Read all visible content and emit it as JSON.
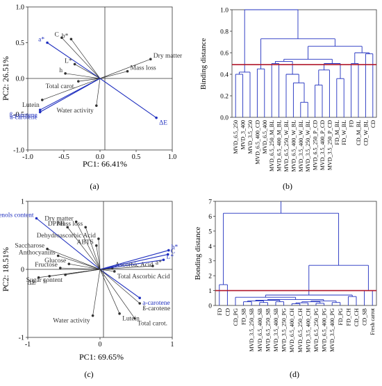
{
  "panels": {
    "a": {
      "caption": "(a)",
      "chart": {
        "type": "biplot",
        "xlabel": "PC1: 66.41%",
        "ylabel": "PC2: 26.51%",
        "xlim": [
          -1.0,
          1.0
        ],
        "ylim": [
          -1.0,
          1.0
        ],
        "xticks": [
          "-1.0",
          "-0.5",
          "0.0",
          "0.5",
          "1.0"
        ],
        "yticks": [
          "1.0",
          "0.5",
          "0.0",
          "-0.5",
          "-1.0"
        ],
        "vectors": [
          {
            "label": "C",
            "x": -0.53,
            "y": 0.57,
            "color": "#333333"
          },
          {
            "label": "b*",
            "x": -0.4,
            "y": 0.55,
            "color": "#333333"
          },
          {
            "label": "a*",
            "x": -0.73,
            "y": 0.5,
            "color": "#1f2fbf"
          },
          {
            "label": "L*",
            "x": -0.35,
            "y": 0.2,
            "color": "#333333"
          },
          {
            "label": "h",
            "x": -0.48,
            "y": 0.07,
            "color": "#333333"
          },
          {
            "label": "Total carot.",
            "x": -0.3,
            "y": -0.04,
            "color": "#333333"
          },
          {
            "label": "Lutein",
            "x": -0.8,
            "y": -0.3,
            "color": "#333333"
          },
          {
            "label": "Water activity",
            "x": -0.05,
            "y": -0.38,
            "color": "#333333"
          },
          {
            "label": "ß-carotene",
            "x": -0.83,
            "y": -0.44,
            "color": "#1f2fbf"
          },
          {
            "label": "a-carotene",
            "x": -0.83,
            "y": -0.47,
            "color": "#1f2fbf"
          },
          {
            "label": "Dry matter",
            "x": 0.7,
            "y": 0.27,
            "color": "#333333"
          },
          {
            "label": "Mass loss",
            "x": 0.38,
            "y": 0.1,
            "color": "#333333"
          },
          {
            "label": "ΔE",
            "x": 0.78,
            "y": -0.55,
            "color": "#1f2fbf"
          }
        ]
      }
    },
    "b": {
      "caption": "(b)",
      "chart": {
        "type": "dendrogram",
        "ylabel": "Binding distance",
        "ylim": [
          0.0,
          1.0
        ],
        "yticks": [
          "1.0",
          "0.8",
          "0.6",
          "0.4",
          "0.2",
          "0.0"
        ],
        "cutoff": 0.49,
        "leaves": [
          "MVD_6.5_250",
          "MVD_3_400",
          "MVD_3.5_250",
          "MVD_6.5_400_CD",
          "MVD_6.5_400",
          "MVD_6.5_250_M_BL",
          "MVD_6.5_400_M_BL",
          "MVD_6.5_250_W_BL",
          "MVD_6.5_400_W_BL",
          "MVD_3.5_400_W_BL",
          "MVD_3.5_250_W_BL",
          "MVD_6.5_250_P_CD",
          "MVD_3.5_400_P_CD",
          "MVD_3.5_250_P_CD",
          "FD_M_BL",
          "FD_W_BL",
          "FD",
          "CD_M_BL",
          "CD_W_BL",
          "CD"
        ]
      }
    },
    "c": {
      "caption": "(c)",
      "chart": {
        "type": "biplot",
        "xlabel": "PC1: 69.65%",
        "ylabel": "PC2: 18.51%",
        "xlim": [
          -1.0,
          1.0
        ],
        "ylim": [
          -1.0,
          1.0
        ],
        "xticks": [
          "-1",
          "0",
          "1"
        ],
        "yticks": [
          "1",
          "0",
          "-1"
        ],
        "vectors": [
          {
            "label": "Polyphenols content",
            "x": -0.88,
            "y": 0.75,
            "color": "#1f2fbf"
          },
          {
            "label": "Dry matter",
            "x": -0.33,
            "y": 0.7,
            "color": "#333333"
          },
          {
            "label": "DPPH",
            "x": -0.45,
            "y": 0.62,
            "color": "#333333"
          },
          {
            "label": "Mass loss",
            "x": -0.2,
            "y": 0.62,
            "color": "#333333"
          },
          {
            "label": "Dehydroascorbic Acid",
            "x": -0.02,
            "y": 0.45,
            "color": "#333333"
          },
          {
            "label": "ABTS",
            "x": -0.05,
            "y": 0.35,
            "color": "#333333"
          },
          {
            "label": "Saccharose",
            "x": -0.73,
            "y": 0.3,
            "color": "#333333"
          },
          {
            "label": "Anthocyanins",
            "x": -0.58,
            "y": 0.2,
            "color": "#333333"
          },
          {
            "label": "Glucose",
            "x": -0.43,
            "y": 0.08,
            "color": "#333333"
          },
          {
            "label": "Fructose",
            "x": -0.55,
            "y": 0.02,
            "color": "#333333"
          },
          {
            "label": "Sugar content",
            "x": -0.48,
            "y": -0.08,
            "color": "#333333"
          },
          {
            "label": "h",
            "x": -0.7,
            "y": -0.1,
            "color": "#333333"
          },
          {
            "label": "ΔE",
            "x": -0.85,
            "y": -0.12,
            "color": "#333333"
          },
          {
            "label": "Ascorbic Acid",
            "x": 0.17,
            "y": 0.02,
            "color": "#333333"
          },
          {
            "label": "Total Ascorbic Acid",
            "x": 0.2,
            "y": -0.03,
            "color": "#333333"
          },
          {
            "label": "b*",
            "x": 0.95,
            "y": 0.28,
            "color": "#1f2fbf"
          },
          {
            "label": "C",
            "x": 0.94,
            "y": 0.22,
            "color": "#1f2fbf"
          },
          {
            "label": "L*",
            "x": 0.88,
            "y": 0.14,
            "color": "#1f2fbf"
          },
          {
            "label": "a*",
            "x": 0.73,
            "y": 0.05,
            "color": "#333333"
          },
          {
            "label": "a-carotene",
            "x": 0.55,
            "y": -0.42,
            "color": "#1f2fbf"
          },
          {
            "label": "ß-carotene",
            "x": 0.55,
            "y": -0.5,
            "color": "#333333"
          },
          {
            "label": "Total carot.",
            "x": 0.48,
            "y": -0.72,
            "color": "#333333"
          },
          {
            "label": "Lutein",
            "x": 0.27,
            "y": -0.65,
            "color": "#333333"
          },
          {
            "label": "Water activity",
            "x": -0.1,
            "y": -0.68,
            "color": "#333333"
          }
        ]
      }
    },
    "d": {
      "caption": "(d)",
      "chart": {
        "type": "dendrogram",
        "ylabel": "Bonding distance",
        "ylim": [
          0,
          7
        ],
        "yticks": [
          "7",
          "6",
          "5",
          "4",
          "3",
          "2",
          "1",
          "0"
        ],
        "cutoff": 1.0,
        "leaves": [
          "FD",
          "CD",
          "CD_PG",
          "FD_SB",
          "MVD_3.5_250_SB",
          "MVD_6.5_400_SB",
          "MVD_6.5_250_SB",
          "MVD_3.5_400_SB",
          "MVD_3.5_250_PG",
          "MVD_6.5_400_CH",
          "MVD_6.5_250_CH",
          "MVD_3.5_400_CH",
          "MVD_6.5_250_PG",
          "MVD_6.5_400_PG",
          "MVD_3.5_400_PG",
          "FD_PG",
          "FD_CH",
          "CD_CH",
          "CD_SB",
          "Fresh carrot"
        ]
      }
    }
  }
}
